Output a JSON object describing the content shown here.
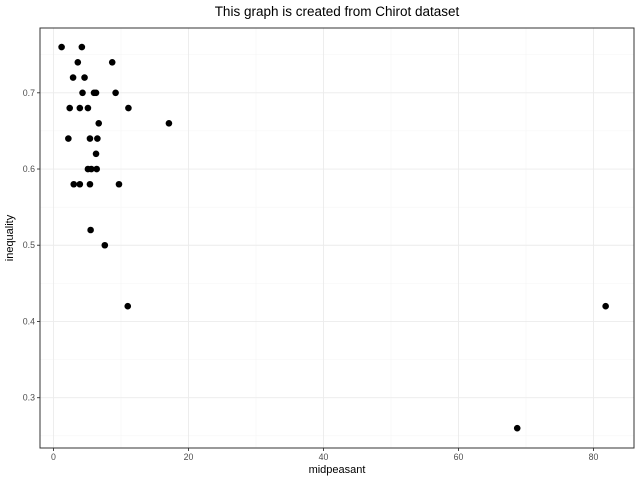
{
  "chart_data": {
    "type": "scatter",
    "title": "This graph is created from Chirot dataset",
    "xlabel": "midpeasant",
    "ylabel": "inequality",
    "xlim": [
      -2.0,
      86.0
    ],
    "ylim": [
      0.234,
      0.785
    ],
    "x_ticks": [
      0,
      20,
      40,
      60,
      80
    ],
    "y_ticks": [
      0.3,
      0.4,
      0.5,
      0.6,
      0.7
    ],
    "x_tick_labels": [
      "0",
      "20",
      "40",
      "60",
      "80"
    ],
    "y_tick_labels": [
      "0.3",
      "0.4",
      "0.5",
      "0.6",
      "0.7"
    ],
    "grid": true,
    "points": [
      {
        "x": 1.2,
        "y": 0.76
      },
      {
        "x": 4.2,
        "y": 0.76
      },
      {
        "x": 3.6,
        "y": 0.74
      },
      {
        "x": 8.7,
        "y": 0.74
      },
      {
        "x": 2.9,
        "y": 0.72
      },
      {
        "x": 4.6,
        "y": 0.72
      },
      {
        "x": 4.3,
        "y": 0.7
      },
      {
        "x": 6.0,
        "y": 0.7
      },
      {
        "x": 6.3,
        "y": 0.7
      },
      {
        "x": 9.2,
        "y": 0.7
      },
      {
        "x": 2.4,
        "y": 0.68
      },
      {
        "x": 3.9,
        "y": 0.68
      },
      {
        "x": 5.1,
        "y": 0.68
      },
      {
        "x": 11.1,
        "y": 0.68
      },
      {
        "x": 6.7,
        "y": 0.66
      },
      {
        "x": 17.1,
        "y": 0.66
      },
      {
        "x": 2.2,
        "y": 0.64
      },
      {
        "x": 5.4,
        "y": 0.64
      },
      {
        "x": 6.5,
        "y": 0.64
      },
      {
        "x": 6.3,
        "y": 0.62
      },
      {
        "x": 5.1,
        "y": 0.6
      },
      {
        "x": 5.6,
        "y": 0.6
      },
      {
        "x": 6.4,
        "y": 0.6
      },
      {
        "x": 3.0,
        "y": 0.58
      },
      {
        "x": 3.9,
        "y": 0.58
      },
      {
        "x": 5.4,
        "y": 0.58
      },
      {
        "x": 9.7,
        "y": 0.58
      },
      {
        "x": 5.5,
        "y": 0.52
      },
      {
        "x": 7.6,
        "y": 0.5
      },
      {
        "x": 11.0,
        "y": 0.42
      },
      {
        "x": 81.8,
        "y": 0.42
      },
      {
        "x": 68.7,
        "y": 0.26
      }
    ]
  }
}
